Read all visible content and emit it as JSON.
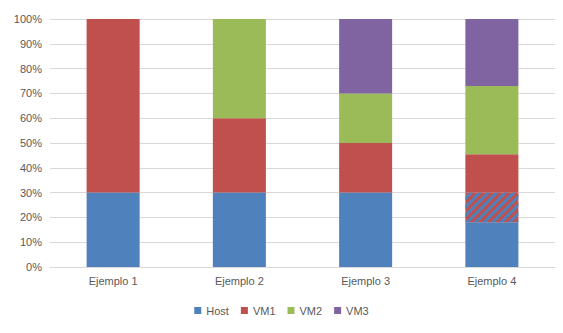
{
  "chart_data": {
    "type": "bar",
    "categories": [
      "Ejemplo 1",
      "Ejemplo 2",
      "Ejemplo 3",
      "Ejemplo 4"
    ],
    "series": [
      {
        "name": "Host",
        "color": "#4f81bd",
        "values": [
          30,
          30,
          30,
          18
        ]
      },
      {
        "name": null,
        "color": "#c0504d",
        "marker": "hatch",
        "values": [
          null,
          null,
          null,
          12
        ]
      },
      {
        "name": "VM1",
        "color": "#c0504d",
        "values": [
          70,
          30,
          20,
          15.5
        ]
      },
      {
        "name": "VM2",
        "color": "#9bbb59",
        "values": [
          null,
          40,
          20,
          27.5
        ]
      },
      {
        "name": "VM3",
        "color": "#8064a2",
        "values": [
          null,
          null,
          30,
          27
        ]
      }
    ],
    "ylim": [
      0,
      100
    ],
    "yticks": [
      {
        "value": 0,
        "label": "0%"
      },
      {
        "value": 10,
        "label": "10%"
      },
      {
        "value": 20,
        "label": "20%"
      },
      {
        "value": 30,
        "label": "30%"
      },
      {
        "value": 40,
        "label": "40%"
      },
      {
        "value": 50,
        "label": "50%"
      },
      {
        "value": 60,
        "label": "60%"
      },
      {
        "value": 70,
        "label": "70%"
      },
      {
        "value": 80,
        "label": "80%"
      },
      {
        "value": 90,
        "label": "90%"
      },
      {
        "value": 100,
        "label": "100%"
      }
    ],
    "stacked": true,
    "grid": true,
    "legend": "bottom"
  }
}
